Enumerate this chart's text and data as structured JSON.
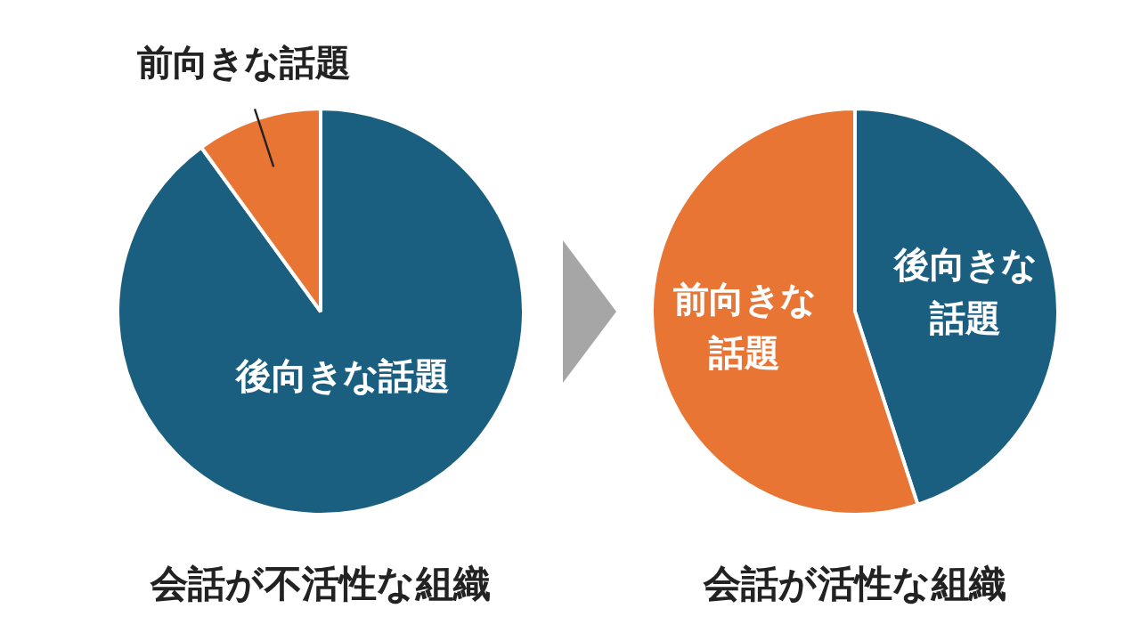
{
  "chart_data": [
    {
      "type": "pie",
      "title": "会話が不活性な組織",
      "categories": [
        "後向きな話題",
        "前向きな話題"
      ],
      "values": [
        90,
        10
      ],
      "colors": [
        "#1a5e80",
        "#e87533"
      ]
    },
    {
      "type": "pie",
      "title": "会話が活性な組織",
      "categories": [
        "後向きな話題",
        "前向きな話題"
      ],
      "values": [
        45,
        55
      ],
      "colors": [
        "#1a5e80",
        "#e87533"
      ]
    }
  ]
}
